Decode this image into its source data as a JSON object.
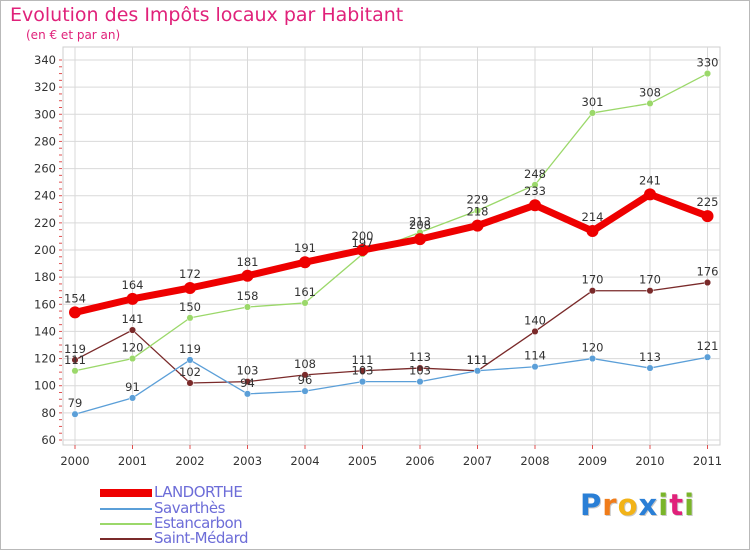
{
  "header": {
    "title": "Evolution des Impôts locaux par Habitant",
    "subtitle": "(en € et par an)"
  },
  "logo": {
    "text": "Proxiti",
    "letters": [
      "P",
      "r",
      "o",
      "x",
      "i",
      "t",
      "i"
    ],
    "colors": [
      "#2a7fd6",
      "#f07c1a",
      "#f2b318",
      "#2a7fd6",
      "#7ab52a",
      "#e0217a",
      "#7ab52a"
    ]
  },
  "chart_data": {
    "type": "line",
    "title": "Evolution des Impôts locaux par Habitant",
    "subtitle": "(en € et par an)",
    "xlabel": "",
    "ylabel": "",
    "x": [
      "2000",
      "2001",
      "2002",
      "2003",
      "2004",
      "2005",
      "2006",
      "2007",
      "2008",
      "2009",
      "2010",
      "2011"
    ],
    "ylim": [
      60,
      340
    ],
    "yticks": [
      60,
      80,
      100,
      120,
      140,
      160,
      180,
      200,
      220,
      240,
      260,
      280,
      300,
      320,
      340
    ],
    "grid": true,
    "legend": "bottom-left",
    "series": [
      {
        "name": "Saint-Médard",
        "color": "#7a2a2a",
        "values": [
          119,
          141,
          102,
          103,
          108,
          111,
          113,
          111,
          140,
          170,
          170,
          176
        ],
        "labels": [
          "119",
          "141",
          "102",
          "103",
          "108",
          "111",
          "113",
          "111",
          "140",
          "170",
          "170",
          "176"
        ],
        "thick": false
      },
      {
        "name": "Savarthès",
        "color": "#5b9fd8",
        "values": [
          79,
          91,
          119,
          94,
          96,
          103,
          103,
          111,
          114,
          120,
          113,
          121
        ],
        "labels": [
          "79",
          "91",
          "119",
          "94",
          "96",
          "103",
          "103",
          "111",
          "114",
          "120",
          "113",
          "121"
        ],
        "thick": false
      },
      {
        "name": "Estancarbon",
        "color": "#9bd86a",
        "values": [
          111,
          120,
          150,
          158,
          161,
          197,
          213,
          229,
          248,
          301,
          308,
          330
        ],
        "labels": [
          "111",
          "120",
          "150",
          "158",
          "161",
          "197",
          "213",
          "229",
          "248",
          "301",
          "308",
          "330"
        ],
        "thick": false
      },
      {
        "name": "LANDORTHE",
        "color": "#ee0000",
        "values": [
          154,
          164,
          172,
          181,
          191,
          200,
          208,
          218,
          233,
          214,
          241,
          225
        ],
        "labels": [
          "154",
          "164",
          "172",
          "181",
          "191",
          "200",
          "208",
          "218",
          "233",
          "214",
          "241",
          "225"
        ],
        "thick": true
      }
    ],
    "legend_order": [
      "LANDORTHE",
      "Savarthès",
      "Estancarbon",
      "Saint-Médard"
    ]
  }
}
